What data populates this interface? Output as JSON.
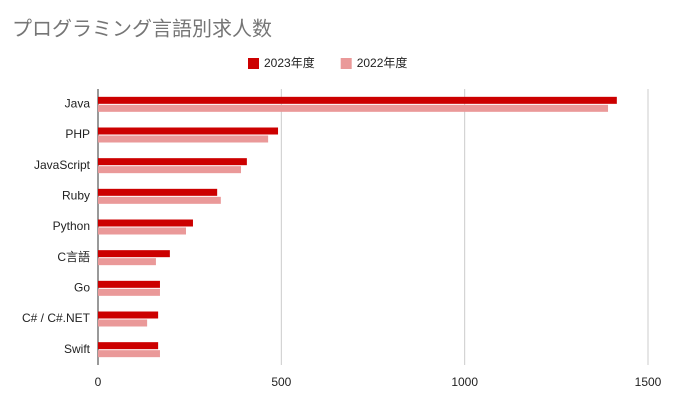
{
  "chart_data": {
    "type": "hbar",
    "title": "プログラミング言語別求人数",
    "categories": [
      "Java",
      "PHP",
      "JavaScript",
      "Ruby",
      "Python",
      "C言語",
      "Go",
      "C# / C#.NET",
      "Swift"
    ],
    "series": [
      {
        "name": "2023年度",
        "color": "#cc0000",
        "values": [
          1415,
          491,
          406,
          325,
          259,
          196,
          169,
          164,
          164
        ]
      },
      {
        "name": "2022年度",
        "color": "#ea9999",
        "values": [
          1391,
          464,
          390,
          335,
          240,
          158,
          169,
          134,
          169
        ]
      }
    ],
    "xlim": [
      0,
      1500
    ],
    "xticks": [
      0,
      500,
      1000,
      1500
    ],
    "grid": true,
    "legend": "top"
  }
}
